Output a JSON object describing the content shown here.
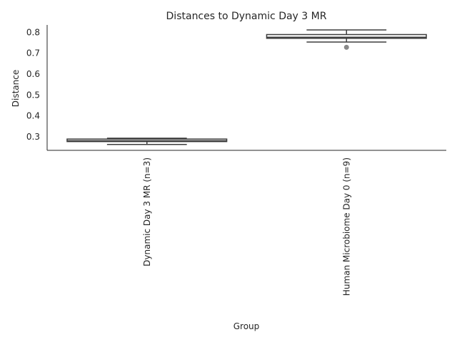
{
  "chart_data": {
    "type": "box",
    "title": "Distances to Dynamic Day 3 MR",
    "xlabel": "Group",
    "ylabel": "Distance",
    "ylim": [
      0.235,
      0.835
    ],
    "yticks": [
      0.3,
      0.4,
      0.5,
      0.6,
      0.7,
      0.8
    ],
    "ytick_labels": [
      "0.3",
      "0.4",
      "0.5",
      "0.6",
      "0.7",
      "0.8"
    ],
    "categories": [
      "Dynamic Day 3 MR (n=3)",
      "Human Microbiome Day 0 (n=9)"
    ],
    "boxes": [
      {
        "whisker_low": 0.263,
        "q1": 0.277,
        "median": 0.281,
        "q3": 0.289,
        "whisker_high": 0.293,
        "outliers": []
      },
      {
        "whisker_low": 0.753,
        "q1": 0.771,
        "median": 0.776,
        "q3": 0.789,
        "whisker_high": 0.811,
        "outliers": [
          0.728
        ]
      }
    ],
    "grid": false,
    "colors": {
      "box_stroke": "#3d3d3d",
      "outlier": "#888888",
      "axis": "#262626",
      "text": "#262626"
    }
  }
}
